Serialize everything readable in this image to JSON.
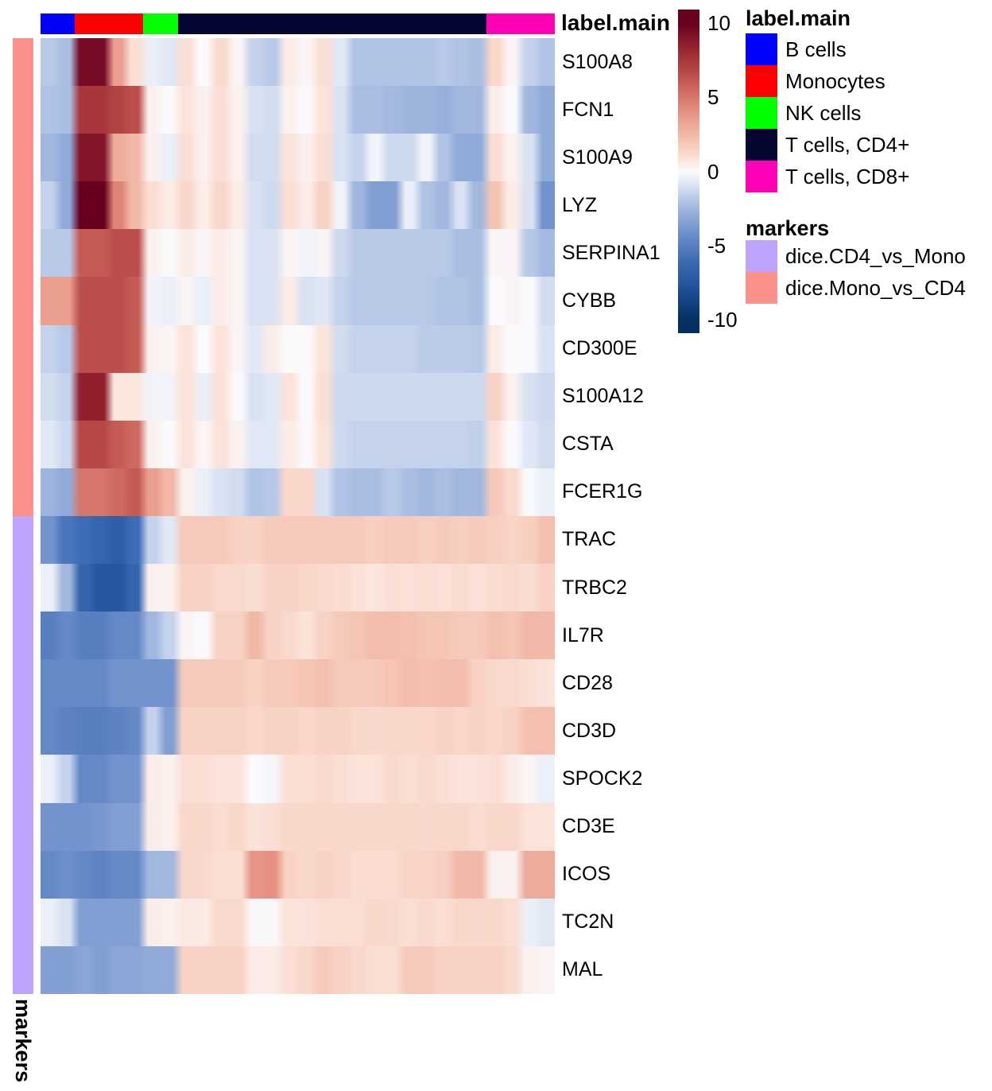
{
  "figure": {
    "top_annotation_title": "label.main",
    "row_annotation_title": "markers",
    "colorbar": {
      "tick_labels": [
        "10",
        "5",
        "0",
        "-5",
        "-10"
      ],
      "tick_values": [
        10,
        5,
        0,
        -5,
        -10
      ],
      "domain": [
        -10.9,
        10.9
      ]
    },
    "legend_label_main": {
      "title": "label.main",
      "items": [
        {
          "label": "B cells",
          "color": "#0000FF"
        },
        {
          "label": "Monocytes",
          "color": "#FF0000"
        },
        {
          "label": "NK cells",
          "color": "#00FF00"
        },
        {
          "label": "T cells, CD4+",
          "color": "#050532"
        },
        {
          "label": "T cells, CD8+",
          "color": "#FF00B6"
        }
      ]
    },
    "legend_markers": {
      "title": "markers",
      "items": [
        {
          "label": "dice.CD4_vs_Mono",
          "color": "#BFA3FC"
        },
        {
          "label": "dice.Mono_vs_CD4",
          "color": "#FB9189"
        }
      ]
    }
  },
  "chart_data": {
    "type": "heatmap",
    "title": "",
    "value_domain": [
      -10,
      10
    ],
    "column_groups": [
      {
        "label": "B cells",
        "color": "#0000FF",
        "span": 2
      },
      {
        "label": "Monocytes",
        "color": "#FF0000",
        "span": 4
      },
      {
        "label": "NK cells",
        "color": "#00FF00",
        "span": 2
      },
      {
        "label": "T cells, CD4+",
        "color": "#050532",
        "span": 18
      },
      {
        "label": "T cells, CD8+",
        "color": "#FF00B6",
        "span": 4
      }
    ],
    "row_groups": [
      {
        "label": "dice.Mono_vs_CD4",
        "color": "#FB9189",
        "rows": 10
      },
      {
        "label": "dice.CD4_vs_Mono",
        "color": "#BFA3FC",
        "rows": 10
      }
    ],
    "colormap": {
      "anchor_values": [
        -10,
        -8,
        -6,
        -4,
        -2,
        -0.8,
        0,
        0.8,
        2,
        4,
        6,
        8,
        10
      ],
      "anchor_colors": [
        "#053061",
        "#1D4F96",
        "#3E6CB4",
        "#7293CD",
        "#B0C3E4",
        "#E1E8F5",
        "#FAFAFC",
        "#FBE3DA",
        "#F5C5B4",
        "#E59181",
        "#C65B55",
        "#9E2A33",
        "#67001F"
      ]
    },
    "rows": [
      {
        "gene": "S100A8",
        "values": [
          -1.8,
          -2.2,
          9.5,
          9.5,
          3.5,
          1.0,
          -0.5,
          -0.8,
          1.0,
          0.0,
          1.2,
          0.2,
          -1.5,
          -1.8,
          0.5,
          0.2,
          1.0,
          -0.8,
          -2.0,
          -2.0,
          -2.0,
          -2.0,
          -2.0,
          -1.8,
          -2.0,
          -2.2,
          1.3,
          0.2,
          -1.5,
          -2.0
        ]
      },
      {
        "gene": "FCN1",
        "values": [
          -2.0,
          -2.2,
          7.5,
          7.5,
          7.0,
          6.5,
          0.3,
          0.0,
          0.8,
          0.3,
          1.0,
          0.3,
          -1.0,
          -1.2,
          0.3,
          0.0,
          0.8,
          -1.0,
          -2.2,
          -2.2,
          -2.4,
          -2.6,
          -2.6,
          -2.8,
          -2.5,
          -2.5,
          0.5,
          0.0,
          -2.5,
          -3.0
        ]
      },
      {
        "gene": "S100A9",
        "values": [
          -2.5,
          -3.0,
          9.0,
          9.0,
          3.0,
          2.5,
          0.3,
          -0.5,
          1.0,
          0.3,
          1.0,
          0.3,
          -1.2,
          -1.2,
          0.8,
          0.3,
          1.0,
          -1.0,
          -1.5,
          -0.3,
          -1.3,
          -1.3,
          -0.3,
          -2.0,
          -3.0,
          -3.0,
          1.0,
          0.3,
          -1.0,
          -3.0
        ]
      },
      {
        "gene": "LYZ",
        "values": [
          -1.5,
          -3.0,
          10.0,
          10.0,
          4.5,
          2.5,
          1.0,
          0.5,
          1.3,
          0.5,
          1.3,
          0.5,
          -1.0,
          -1.3,
          1.0,
          0.5,
          1.5,
          -0.3,
          -2.5,
          -3.5,
          -3.5,
          -0.5,
          -2.0,
          -2.5,
          -1.0,
          -2.5,
          2.0,
          0.5,
          -1.0,
          -4.0
        ]
      },
      {
        "gene": "SERPINA1",
        "values": [
          -1.8,
          -1.8,
          6.0,
          6.0,
          6.5,
          6.5,
          0.3,
          0.0,
          0.5,
          0.2,
          0.5,
          0.2,
          -1.0,
          -1.0,
          0.2,
          -0.3,
          0.2,
          -1.3,
          -1.8,
          -1.8,
          -1.8,
          -1.8,
          -1.8,
          -1.8,
          -2.2,
          -2.2,
          0.2,
          0.2,
          -1.8,
          -2.4
        ]
      },
      {
        "gene": "CYBB",
        "values": [
          3.5,
          3.5,
          6.5,
          6.5,
          6.5,
          6.0,
          -0.3,
          -0.5,
          0.2,
          -0.5,
          0.5,
          0.2,
          -1.0,
          -1.0,
          0.5,
          -1.0,
          -0.8,
          -1.5,
          -1.8,
          -1.8,
          -1.8,
          -1.8,
          -1.8,
          -2.0,
          -2.0,
          -2.2,
          0.0,
          0.2,
          0.0,
          -1.2
        ]
      },
      {
        "gene": "CD300E",
        "values": [
          -1.5,
          -1.8,
          6.5,
          6.5,
          6.5,
          6.0,
          0.3,
          0.2,
          0.8,
          0.0,
          0.8,
          0.2,
          -0.8,
          0.5,
          0.0,
          0.0,
          0.8,
          -1.2,
          -1.5,
          -1.5,
          -1.5,
          -1.5,
          -1.7,
          -1.7,
          -1.7,
          -1.8,
          0.5,
          0.0,
          0.0,
          -1.0
        ]
      },
      {
        "gene": "S100A12",
        "values": [
          -1.2,
          -1.5,
          8.5,
          8.5,
          0.7,
          0.7,
          -0.3,
          -0.3,
          0.8,
          -0.5,
          0.9,
          0.0,
          -1.0,
          -0.8,
          0.8,
          0.0,
          1.0,
          -1.3,
          -1.3,
          -1.3,
          -1.3,
          -1.3,
          -1.3,
          -1.3,
          -1.3,
          -1.3,
          1.5,
          0.3,
          -1.0,
          -1.3
        ]
      },
      {
        "gene": "CSTA",
        "values": [
          -0.8,
          -1.3,
          6.8,
          6.8,
          6.0,
          5.5,
          0.3,
          0.0,
          0.8,
          0.2,
          0.8,
          0.3,
          -0.8,
          -0.8,
          0.5,
          0.0,
          0.8,
          -1.3,
          -1.5,
          -1.5,
          -1.5,
          -1.5,
          -1.5,
          -1.5,
          -1.5,
          -1.6,
          0.8,
          0.0,
          -0.8,
          -1.2
        ]
      },
      {
        "gene": "FCER1G",
        "values": [
          -2.6,
          -3.0,
          5.0,
          5.0,
          5.5,
          6.0,
          3.5,
          2.5,
          0.3,
          -0.5,
          -1.0,
          -1.2,
          -2.0,
          -1.8,
          1.3,
          1.3,
          -1.0,
          -2.0,
          -2.2,
          -2.2,
          -1.8,
          -2.2,
          -2.5,
          -2.2,
          -2.5,
          -2.5,
          1.8,
          1.2,
          0.0,
          -0.5
        ]
      },
      {
        "gene": "TRAC",
        "values": [
          -4.0,
          -5.5,
          -6.0,
          -6.5,
          -7.0,
          -6.0,
          -1.5,
          -0.8,
          1.8,
          1.8,
          1.8,
          1.5,
          1.5,
          1.8,
          1.8,
          1.8,
          1.8,
          1.8,
          1.8,
          1.6,
          1.8,
          1.8,
          1.6,
          1.8,
          1.6,
          1.8,
          1.6,
          1.4,
          1.6,
          2.2
        ]
      },
      {
        "gene": "TRBC2",
        "values": [
          -0.5,
          -2.5,
          -6.5,
          -7.5,
          -7.5,
          -6.5,
          0.3,
          0.3,
          1.5,
          1.5,
          1.2,
          1.2,
          1.0,
          1.5,
          1.5,
          1.3,
          1.2,
          1.1,
          0.9,
          0.7,
          1.0,
          0.9,
          1.0,
          0.9,
          1.1,
          0.9,
          1.1,
          1.2,
          1.0,
          1.5
        ]
      },
      {
        "gene": "IL7R",
        "values": [
          -5.0,
          -4.5,
          -5.0,
          -5.0,
          -4.5,
          -4.5,
          -2.5,
          -1.5,
          0.2,
          0.0,
          1.5,
          1.5,
          2.5,
          1.5,
          1.2,
          0.8,
          1.5,
          1.8,
          2.0,
          2.3,
          2.3,
          2.2,
          2.0,
          2.0,
          1.8,
          1.8,
          2.2,
          2.0,
          2.5,
          2.5
        ]
      },
      {
        "gene": "CD28",
        "values": [
          -4.5,
          -4.5,
          -4.5,
          -4.5,
          -4.0,
          -4.0,
          -4.0,
          -4.0,
          1.8,
          1.8,
          1.8,
          1.8,
          1.5,
          1.8,
          1.8,
          2.0,
          2.2,
          1.8,
          1.8,
          1.8,
          2.0,
          2.3,
          2.2,
          2.3,
          2.3,
          1.5,
          1.2,
          1.2,
          1.0,
          0.8
        ]
      },
      {
        "gene": "CD3D",
        "values": [
          -4.5,
          -4.8,
          -5.0,
          -5.0,
          -4.8,
          -4.5,
          -1.5,
          -3.5,
          1.5,
          1.5,
          1.5,
          1.5,
          1.3,
          1.5,
          1.5,
          1.3,
          1.5,
          1.5,
          1.3,
          1.2,
          1.3,
          1.3,
          1.3,
          1.5,
          1.3,
          1.5,
          1.3,
          1.5,
          2.2,
          2.2
        ]
      },
      {
        "gene": "SPOCK2",
        "values": [
          -0.5,
          -1.5,
          -4.5,
          -4.5,
          -4.0,
          -4.0,
          0.5,
          0.3,
          1.0,
          1.0,
          0.8,
          0.8,
          0.0,
          -0.2,
          1.0,
          1.0,
          1.2,
          1.0,
          0.8,
          0.8,
          1.2,
          1.0,
          1.2,
          1.0,
          0.8,
          0.8,
          1.0,
          0.5,
          0.2,
          -0.5
        ]
      },
      {
        "gene": "CD3E",
        "values": [
          -4.0,
          -4.0,
          -4.0,
          -3.8,
          -3.5,
          -3.5,
          0.5,
          0.3,
          1.3,
          1.3,
          1.1,
          1.3,
          0.8,
          1.0,
          1.3,
          1.3,
          1.3,
          1.3,
          1.3,
          1.3,
          1.3,
          1.3,
          1.2,
          1.3,
          1.3,
          1.1,
          1.3,
          1.3,
          0.8,
          0.8
        ]
      },
      {
        "gene": "ICOS",
        "values": [
          -4.5,
          -4.2,
          -4.5,
          -4.8,
          -4.5,
          -4.5,
          -2.5,
          -2.5,
          1.3,
          1.2,
          1.0,
          1.0,
          3.8,
          4.0,
          1.5,
          1.2,
          1.5,
          1.3,
          1.1,
          1.1,
          1.1,
          1.4,
          1.4,
          1.6,
          2.5,
          2.5,
          0.3,
          0.3,
          3.0,
          3.0
        ]
      },
      {
        "gene": "TC2N",
        "values": [
          -0.5,
          -1.0,
          -3.5,
          -3.5,
          -3.5,
          -3.5,
          0.5,
          0.3,
          0.6,
          0.6,
          1.2,
          1.2,
          0.1,
          0.1,
          0.8,
          0.8,
          1.0,
          1.0,
          1.0,
          1.3,
          1.2,
          1.0,
          1.2,
          1.0,
          1.3,
          1.2,
          1.3,
          1.0,
          -0.5,
          -0.8
        ]
      },
      {
        "gene": "MAL",
        "values": [
          -3.5,
          -3.5,
          -3.2,
          -3.5,
          -3.2,
          -3.2,
          -3.0,
          -3.0,
          1.5,
          1.5,
          1.5,
          1.5,
          0.5,
          0.5,
          1.0,
          1.3,
          1.8,
          1.5,
          1.3,
          1.0,
          1.0,
          1.8,
          1.8,
          1.5,
          1.5,
          1.5,
          1.5,
          1.2,
          0.3,
          0.2
        ]
      }
    ]
  }
}
